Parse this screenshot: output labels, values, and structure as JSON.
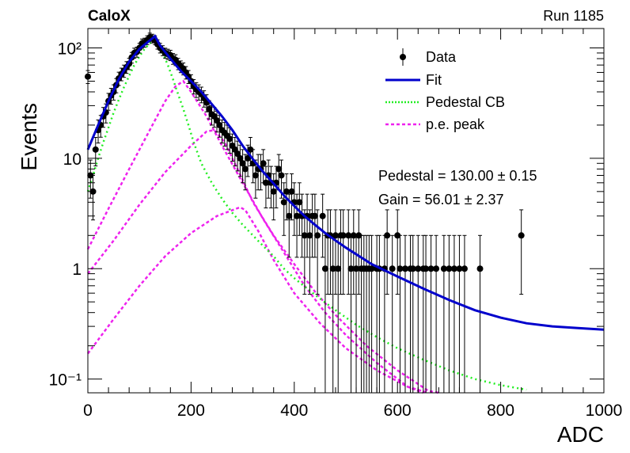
{
  "header": {
    "experiment": "CaloX",
    "run": "Run 1185"
  },
  "annotations": {
    "pedestal": "Pedestal = 130.00 ± 0.15",
    "gain": "Gain = 56.01 ± 2.37"
  },
  "colors": {
    "data": "#000000",
    "fit": "#0000cc",
    "pedestal": "#22ee22",
    "pe_peak": "#ee22ee"
  },
  "chart_data": {
    "type": "scatter",
    "title": "",
    "xlabel": "ADC",
    "ylabel": "Events",
    "xlim": [
      0,
      1000
    ],
    "ylim": [
      0.075,
      150
    ],
    "yscale": "log",
    "xticks": [
      0,
      200,
      400,
      600,
      800,
      1000
    ],
    "yticks": [
      {
        "value": 0.1,
        "label": "10⁻¹"
      },
      {
        "value": 1,
        "label": "1"
      },
      {
        "value": 10,
        "label": "10"
      },
      {
        "value": 100,
        "label": "10²"
      }
    ],
    "grid": false,
    "legend": {
      "position": "top-right",
      "entries": [
        {
          "label": "Data",
          "style": "marker"
        },
        {
          "label": "Fit",
          "style": "solid"
        },
        {
          "label": "Pedestal CB",
          "style": "dotted"
        },
        {
          "label": "p.e. peak",
          "style": "dashed"
        }
      ]
    },
    "data_points": [
      [
        0,
        55
      ],
      [
        5,
        7
      ],
      [
        10,
        5
      ],
      [
        15,
        12
      ],
      [
        20,
        18
      ],
      [
        25,
        20
      ],
      [
        30,
        24
      ],
      [
        35,
        26
      ],
      [
        40,
        33
      ],
      [
        45,
        37
      ],
      [
        50,
        40
      ],
      [
        55,
        46
      ],
      [
        60,
        53
      ],
      [
        65,
        58
      ],
      [
        70,
        62
      ],
      [
        75,
        67
      ],
      [
        80,
        72
      ],
      [
        85,
        82
      ],
      [
        90,
        90
      ],
      [
        95,
        92
      ],
      [
        100,
        100
      ],
      [
        105,
        110
      ],
      [
        110,
        112
      ],
      [
        115,
        118
      ],
      [
        120,
        125
      ],
      [
        125,
        122
      ],
      [
        130,
        118
      ],
      [
        135,
        108
      ],
      [
        140,
        100
      ],
      [
        145,
        95
      ],
      [
        150,
        90
      ],
      [
        155,
        88
      ],
      [
        160,
        86
      ],
      [
        165,
        80
      ],
      [
        170,
        78
      ],
      [
        175,
        72
      ],
      [
        180,
        68
      ],
      [
        185,
        65
      ],
      [
        190,
        60
      ],
      [
        195,
        55
      ],
      [
        200,
        50
      ],
      [
        205,
        45
      ],
      [
        210,
        42
      ],
      [
        215,
        40
      ],
      [
        220,
        38
      ],
      [
        225,
        35
      ],
      [
        230,
        32
      ],
      [
        235,
        28
      ],
      [
        240,
        25
      ],
      [
        245,
        24
      ],
      [
        250,
        22
      ],
      [
        255,
        20
      ],
      [
        260,
        18
      ],
      [
        265,
        17
      ],
      [
        270,
        16
      ],
      [
        275,
        15
      ],
      [
        280,
        13
      ],
      [
        285,
        12
      ],
      [
        290,
        11
      ],
      [
        295,
        10
      ],
      [
        300,
        9
      ],
      [
        305,
        8
      ],
      [
        310,
        10
      ],
      [
        315,
        12
      ],
      [
        320,
        9
      ],
      [
        325,
        7
      ],
      [
        330,
        8
      ],
      [
        335,
        8
      ],
      [
        340,
        9
      ],
      [
        345,
        6
      ],
      [
        350,
        7
      ],
      [
        355,
        6
      ],
      [
        360,
        5
      ],
      [
        365,
        6
      ],
      [
        370,
        8
      ],
      [
        375,
        7
      ],
      [
        380,
        4
      ],
      [
        385,
        5
      ],
      [
        390,
        3
      ],
      [
        395,
        5
      ],
      [
        400,
        4
      ],
      [
        405,
        3
      ],
      [
        410,
        4
      ],
      [
        415,
        3
      ],
      [
        420,
        2
      ],
      [
        425,
        3
      ],
      [
        430,
        2
      ],
      [
        435,
        3
      ],
      [
        440,
        3
      ],
      [
        445,
        2
      ],
      [
        455,
        3
      ],
      [
        460,
        1
      ],
      [
        465,
        2
      ],
      [
        470,
        2
      ],
      [
        475,
        1
      ],
      [
        480,
        2
      ],
      [
        485,
        1
      ],
      [
        490,
        2
      ],
      [
        495,
        2
      ],
      [
        505,
        2
      ],
      [
        510,
        1
      ],
      [
        515,
        2
      ],
      [
        520,
        1
      ],
      [
        525,
        2
      ],
      [
        530,
        1
      ],
      [
        535,
        1
      ],
      [
        540,
        1
      ],
      [
        545,
        1
      ],
      [
        550,
        1
      ],
      [
        560,
        1
      ],
      [
        565,
        1
      ],
      [
        575,
        1
      ],
      [
        580,
        2
      ],
      [
        590,
        1
      ],
      [
        600,
        2
      ],
      [
        605,
        1
      ],
      [
        615,
        1
      ],
      [
        625,
        1
      ],
      [
        630,
        1
      ],
      [
        640,
        1
      ],
      [
        650,
        1
      ],
      [
        655,
        1
      ],
      [
        665,
        1
      ],
      [
        675,
        1
      ],
      [
        690,
        1
      ],
      [
        700,
        1
      ],
      [
        710,
        1
      ],
      [
        720,
        1
      ],
      [
        730,
        1
      ],
      [
        760,
        1
      ],
      [
        840,
        2
      ]
    ],
    "fit": [
      [
        0,
        12
      ],
      [
        20,
        20
      ],
      [
        40,
        33
      ],
      [
        60,
        52
      ],
      [
        80,
        75
      ],
      [
        100,
        98
      ],
      [
        115,
        112
      ],
      [
        125,
        122
      ],
      [
        130,
        128
      ],
      [
        140,
        105
      ],
      [
        160,
        80
      ],
      [
        180,
        62
      ],
      [
        200,
        50
      ],
      [
        220,
        40
      ],
      [
        240,
        31
      ],
      [
        260,
        24
      ],
      [
        280,
        18
      ],
      [
        300,
        13
      ],
      [
        320,
        9.8
      ],
      [
        340,
        7.5
      ],
      [
        360,
        5.9
      ],
      [
        380,
        4.6
      ],
      [
        400,
        3.7
      ],
      [
        420,
        3.0
      ],
      [
        440,
        2.5
      ],
      [
        460,
        2.1
      ],
      [
        480,
        1.8
      ],
      [
        500,
        1.55
      ],
      [
        550,
        1.1
      ],
      [
        600,
        0.85
      ],
      [
        650,
        0.66
      ],
      [
        700,
        0.52
      ],
      [
        750,
        0.42
      ],
      [
        800,
        0.36
      ],
      [
        850,
        0.32
      ],
      [
        900,
        0.3
      ],
      [
        950,
        0.29
      ],
      [
        1000,
        0.28
      ]
    ],
    "pedestal_cb": [
      [
        0,
        5
      ],
      [
        10,
        7
      ],
      [
        20,
        10
      ],
      [
        30,
        14
      ],
      [
        40,
        19
      ],
      [
        50,
        26
      ],
      [
        60,
        34
      ],
      [
        70,
        44
      ],
      [
        80,
        56
      ],
      [
        90,
        70
      ],
      [
        100,
        84
      ],
      [
        110,
        98
      ],
      [
        120,
        110
      ],
      [
        128,
        115
      ],
      [
        135,
        110
      ],
      [
        145,
        90
      ],
      [
        155,
        70
      ],
      [
        165,
        52
      ],
      [
        175,
        38
      ],
      [
        185,
        28
      ],
      [
        195,
        20
      ],
      [
        205,
        14
      ],
      [
        220,
        9
      ],
      [
        240,
        6
      ],
      [
        260,
        4.3
      ],
      [
        280,
        3.2
      ],
      [
        300,
        2.5
      ],
      [
        320,
        2.0
      ],
      [
        340,
        1.6
      ],
      [
        360,
        1.3
      ],
      [
        380,
        1.0
      ],
      [
        400,
        0.82
      ],
      [
        440,
        0.58
      ],
      [
        480,
        0.42
      ],
      [
        520,
        0.31
      ],
      [
        560,
        0.24
      ],
      [
        600,
        0.19
      ],
      [
        650,
        0.15
      ],
      [
        700,
        0.12
      ],
      [
        750,
        0.1
      ],
      [
        800,
        0.088
      ],
      [
        850,
        0.08
      ]
    ],
    "pe_peaks": [
      [
        [
          0,
          1.5
        ],
        [
          40,
          3.5
        ],
        [
          80,
          8
        ],
        [
          120,
          18
        ],
        [
          150,
          33
        ],
        [
          170,
          45
        ],
        [
          185,
          50
        ],
        [
          200,
          40
        ],
        [
          230,
          24
        ],
        [
          260,
          13
        ],
        [
          300,
          6
        ],
        [
          340,
          2.8
        ],
        [
          380,
          1.4
        ],
        [
          420,
          0.7
        ],
        [
          460,
          0.4
        ],
        [
          500,
          0.25
        ],
        [
          560,
          0.14
        ],
        [
          620,
          0.085
        ],
        [
          650,
          0.075
        ]
      ],
      [
        [
          0,
          0.9
        ],
        [
          50,
          1.8
        ],
        [
          100,
          3.8
        ],
        [
          150,
          7.5
        ],
        [
          200,
          13
        ],
        [
          230,
          17.5
        ],
        [
          245,
          18
        ],
        [
          265,
          14
        ],
        [
          290,
          8
        ],
        [
          320,
          4
        ],
        [
          360,
          2
        ],
        [
          400,
          1.1
        ],
        [
          440,
          0.62
        ],
        [
          480,
          0.38
        ],
        [
          540,
          0.2
        ],
        [
          600,
          0.12
        ],
        [
          660,
          0.078
        ],
        [
          680,
          0.075
        ]
      ],
      [
        [
          0,
          0.17
        ],
        [
          50,
          0.35
        ],
        [
          100,
          0.7
        ],
        [
          150,
          1.3
        ],
        [
          200,
          2.1
        ],
        [
          250,
          3.0
        ],
        [
          295,
          3.6
        ],
        [
          305,
          3.4
        ],
        [
          330,
          2.2
        ],
        [
          360,
          1.2
        ],
        [
          400,
          0.6
        ],
        [
          450,
          0.32
        ],
        [
          500,
          0.19
        ],
        [
          560,
          0.12
        ],
        [
          620,
          0.085
        ],
        [
          660,
          0.075
        ]
      ]
    ]
  }
}
